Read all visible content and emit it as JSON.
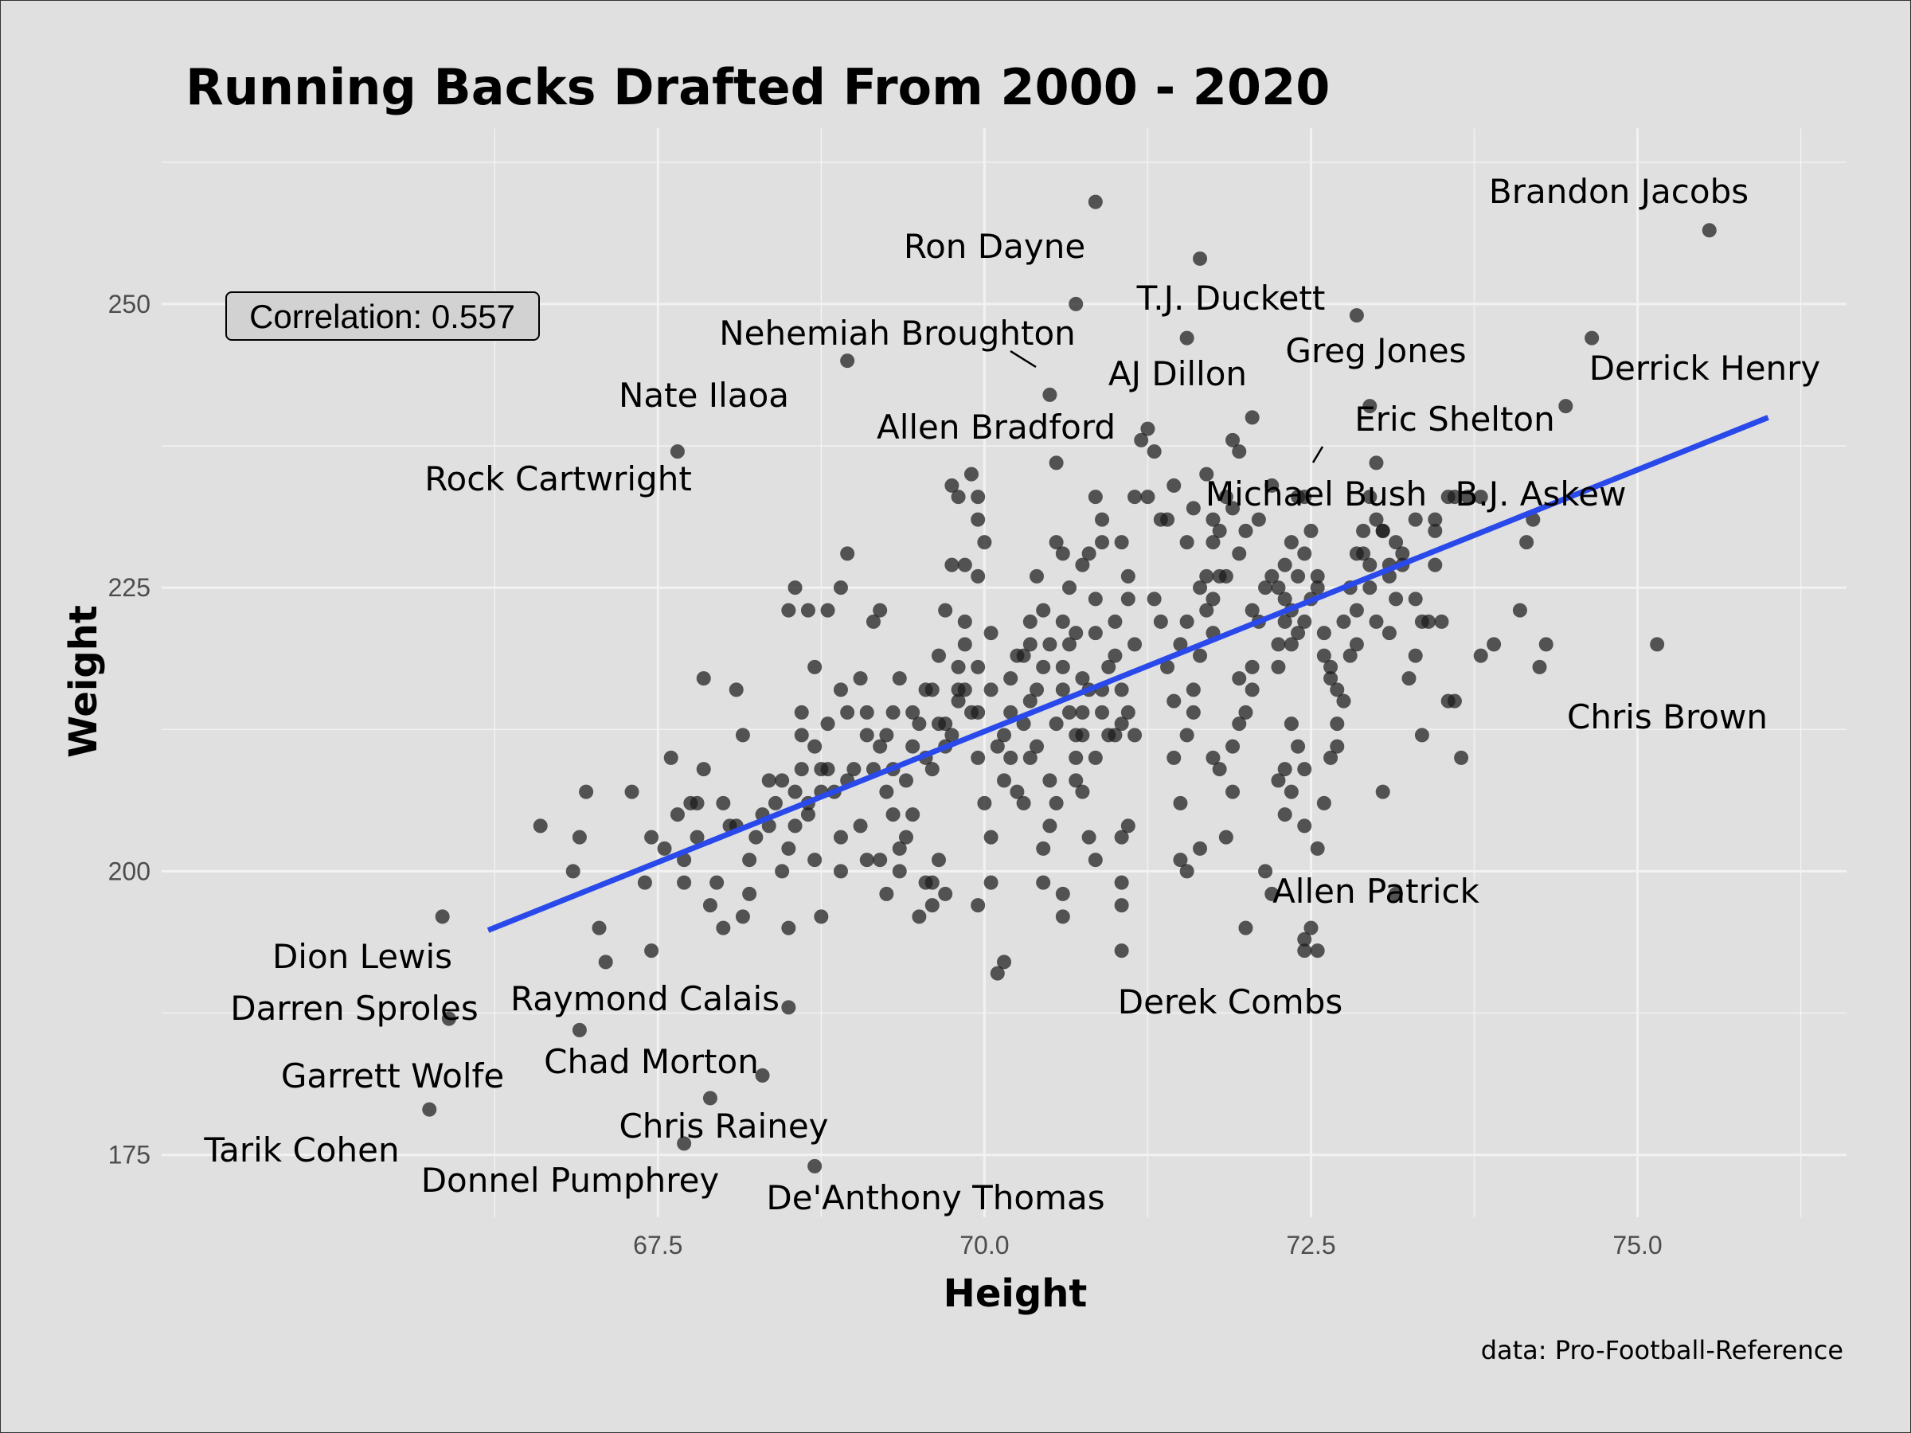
{
  "chart_data": {
    "type": "scatter",
    "title": "Running Backs Drafted From 2000 - 2020",
    "xlabel": "Height",
    "ylabel": "Weight",
    "caption": "data: Pro-Football-Reference",
    "annotation": "Correlation: 0.557",
    "xlim": [
      63.7,
      76.6
    ],
    "ylim": [
      169.5,
      265.5
    ],
    "x_ticks": [
      67.5,
      70.0,
      72.5,
      75.0
    ],
    "x_tick_labels": [
      "67.5",
      "70.0",
      "72.5",
      "75.0"
    ],
    "y_ticks": [
      175,
      200,
      225,
      250
    ],
    "y_tick_labels": [
      "175",
      "200",
      "225",
      "250"
    ],
    "grid": true,
    "colors": {
      "background": "#e0e0e0",
      "grid": "#f2f2f2",
      "points": "#1a1a1a",
      "trend": "#2a49ea"
    },
    "trend_line": {
      "x": [
        66.2,
        76.0
      ],
      "y": [
        194.8,
        240.0
      ]
    },
    "labeled_points": [
      {
        "name": "Brandon Jacobs",
        "x": 75.55,
        "y": 256.5
      },
      {
        "name": "Ron Dayne",
        "x": 70.85,
        "y": 259.0
      },
      {
        "name": "T.J. Duckett",
        "x": 71.65,
        "y": 254.0
      },
      {
        "name": "Nehemiah Broughton",
        "x": 70.7,
        "y": 250.0
      },
      {
        "name": "AJ Dillon",
        "x": 71.55,
        "y": 247.0
      },
      {
        "name": "Greg Jones",
        "x": 72.85,
        "y": 249.0
      },
      {
        "name": "Derrick Henry",
        "x": 74.65,
        "y": 247.0
      },
      {
        "name": "Nate Ilaoa",
        "x": 68.95,
        "y": 245.0
      },
      {
        "name": "Eric Shelton",
        "x": 72.95,
        "y": 241.0
      },
      {
        "name": "Allen Bradford",
        "x": 70.5,
        "y": 242.0
      },
      {
        "name": "Rock Cartwright",
        "x": 67.65,
        "y": 237.0
      },
      {
        "name": "Michael Bush",
        "x": 72.05,
        "y": 240.0
      },
      {
        "name": "B.J. Askew",
        "x": 74.45,
        "y": 241.0
      },
      {
        "name": "Chris Brown",
        "x": 75.15,
        "y": 220.0
      },
      {
        "name": "Allen Patrick",
        "x": 73.15,
        "y": 198.0
      },
      {
        "name": "Derek Combs",
        "x": 72.45,
        "y": 193.0
      },
      {
        "name": "Dion Lewis",
        "x": 65.85,
        "y": 196.0
      },
      {
        "name": "Darren Sproles",
        "x": 65.9,
        "y": 187.0
      },
      {
        "name": "Raymond Calais",
        "x": 68.5,
        "y": 188.0
      },
      {
        "name": "Garrett Wolfe",
        "x": 66.9,
        "y": 186.0
      },
      {
        "name": "Chad Morton",
        "x": 68.3,
        "y": 182.0
      },
      {
        "name": "Tarik Cohen",
        "x": 65.75,
        "y": 179.0
      },
      {
        "name": "Chris Rainey",
        "x": 67.9,
        "y": 180.0
      },
      {
        "name": "Donnel Pumphrey",
        "x": 67.7,
        "y": 176.0
      },
      {
        "name": "De'Anthony Thomas",
        "x": 68.7,
        "y": 174.0
      }
    ],
    "points": [
      [
        66.6,
        204
      ],
      [
        66.9,
        203
      ],
      [
        66.85,
        200
      ],
      [
        66.95,
        207
      ],
      [
        67.3,
        207
      ],
      [
        67.45,
        203
      ],
      [
        67.55,
        202
      ],
      [
        67.4,
        199
      ],
      [
        67.05,
        195
      ],
      [
        67.1,
        192
      ],
      [
        67.45,
        193
      ],
      [
        67.6,
        210
      ],
      [
        67.75,
        206
      ],
      [
        67.8,
        206
      ],
      [
        67.7,
        199
      ],
      [
        67.7,
        201
      ],
      [
        67.85,
        217
      ],
      [
        68.15,
        212
      ],
      [
        68.1,
        216
      ],
      [
        68.05,
        204
      ],
      [
        68.1,
        204
      ],
      [
        68.2,
        198
      ],
      [
        68.45,
        200
      ],
      [
        68.35,
        204
      ],
      [
        68.5,
        195
      ],
      [
        68.35,
        208
      ],
      [
        68.45,
        208
      ],
      [
        68.55,
        207
      ],
      [
        68.65,
        205
      ],
      [
        68.75,
        207
      ],
      [
        68.6,
        209
      ],
      [
        68.6,
        212
      ],
      [
        68.6,
        214
      ],
      [
        68.7,
        218
      ],
      [
        68.65,
        223
      ],
      [
        68.5,
        223
      ],
      [
        68.55,
        225
      ],
      [
        68.75,
        209
      ],
      [
        68.8,
        209
      ],
      [
        68.8,
        223
      ],
      [
        68.85,
        207
      ],
      [
        68.7,
        201
      ],
      [
        68.75,
        196
      ],
      [
        68.9,
        203
      ],
      [
        68.9,
        200
      ],
      [
        68.95,
        214
      ],
      [
        68.95,
        208
      ],
      [
        68.95,
        228
      ],
      [
        68.9,
        225
      ],
      [
        69.05,
        217
      ],
      [
        69.1,
        212
      ],
      [
        69.05,
        204
      ],
      [
        69.15,
        209
      ],
      [
        69.1,
        201
      ],
      [
        69.15,
        222
      ],
      [
        69.2,
        223
      ],
      [
        69.25,
        198
      ],
      [
        69.2,
        201
      ],
      [
        69.25,
        207
      ],
      [
        69.35,
        200
      ],
      [
        69.3,
        205
      ],
      [
        69.35,
        202
      ],
      [
        69.3,
        209
      ],
      [
        69.35,
        217
      ],
      [
        69.4,
        203
      ],
      [
        69.45,
        205
      ],
      [
        69.45,
        214
      ],
      [
        69.55,
        216
      ],
      [
        69.6,
        216
      ],
      [
        69.55,
        210
      ],
      [
        69.5,
        196
      ],
      [
        69.55,
        199
      ],
      [
        69.6,
        197
      ],
      [
        69.6,
        199
      ],
      [
        69.65,
        201
      ],
      [
        69.7,
        198
      ],
      [
        69.7,
        213
      ],
      [
        69.75,
        212
      ],
      [
        69.8,
        216
      ],
      [
        69.85,
        220
      ],
      [
        69.8,
        218
      ],
      [
        69.9,
        214
      ],
      [
        69.85,
        222
      ],
      [
        69.75,
        227
      ],
      [
        69.7,
        223
      ],
      [
        69.65,
        213
      ],
      [
        69.65,
        219
      ],
      [
        69.85,
        227
      ],
      [
        69.8,
        233
      ],
      [
        69.75,
        234
      ],
      [
        69.95,
        233
      ],
      [
        69.9,
        235
      ],
      [
        69.95,
        231
      ],
      [
        70.0,
        229
      ],
      [
        69.95,
        226
      ],
      [
        70.05,
        221
      ],
      [
        69.95,
        214
      ],
      [
        69.95,
        210
      ],
      [
        70.0,
        206
      ],
      [
        69.95,
        197
      ],
      [
        70.05,
        203
      ],
      [
        70.05,
        199
      ],
      [
        70.1,
        191
      ],
      [
        70.15,
        192
      ],
      [
        70.2,
        214
      ],
      [
        70.25,
        219
      ],
      [
        70.2,
        217
      ],
      [
        70.15,
        212
      ],
      [
        70.25,
        207
      ],
      [
        70.3,
        206
      ],
      [
        70.35,
        210
      ],
      [
        70.3,
        219
      ],
      [
        70.35,
        222
      ],
      [
        70.35,
        220
      ],
      [
        70.4,
        226
      ],
      [
        70.45,
        223
      ],
      [
        70.35,
        215
      ],
      [
        70.4,
        211
      ],
      [
        70.45,
        199
      ],
      [
        70.45,
        202
      ],
      [
        70.5,
        204
      ],
      [
        70.5,
        208
      ],
      [
        70.55,
        206
      ],
      [
        70.55,
        213
      ],
      [
        70.6,
        218
      ],
      [
        70.6,
        216
      ],
      [
        70.6,
        222
      ],
      [
        70.65,
        220
      ],
      [
        70.7,
        212
      ],
      [
        70.7,
        210
      ],
      [
        70.7,
        208
      ],
      [
        70.75,
        207
      ],
      [
        70.8,
        203
      ],
      [
        70.85,
        201
      ],
      [
        70.85,
        210
      ],
      [
        70.9,
        214
      ],
      [
        70.9,
        216
      ],
      [
        70.95,
        212
      ],
      [
        71.0,
        222
      ],
      [
        71.0,
        219
      ],
      [
        71.05,
        213
      ],
      [
        70.85,
        221
      ],
      [
        70.85,
        224
      ],
      [
        70.8,
        228
      ],
      [
        70.85,
        233
      ],
      [
        70.9,
        229
      ],
      [
        70.9,
        231
      ],
      [
        70.55,
        236
      ],
      [
        70.55,
        229
      ],
      [
        70.6,
        228
      ],
      [
        70.65,
        225
      ],
      [
        70.75,
        227
      ],
      [
        70.7,
        221
      ],
      [
        70.75,
        217
      ],
      [
        70.75,
        214
      ],
      [
        70.6,
        198
      ],
      [
        70.6,
        196
      ],
      [
        71.05,
        197
      ],
      [
        71.05,
        199
      ],
      [
        71.05,
        193
      ],
      [
        71.05,
        203
      ],
      [
        71.1,
        204
      ],
      [
        71.15,
        212
      ],
      [
        71.15,
        220
      ],
      [
        71.1,
        224
      ],
      [
        71.1,
        226
      ],
      [
        71.05,
        229
      ],
      [
        71.15,
        233
      ],
      [
        71.25,
        233
      ],
      [
        71.35,
        231
      ],
      [
        71.2,
        238
      ],
      [
        71.25,
        239
      ],
      [
        71.3,
        237
      ],
      [
        71.3,
        224
      ],
      [
        71.35,
        222
      ],
      [
        71.4,
        218
      ],
      [
        71.45,
        215
      ],
      [
        71.45,
        210
      ],
      [
        71.5,
        206
      ],
      [
        71.5,
        201
      ],
      [
        71.55,
        200
      ],
      [
        71.55,
        212
      ],
      [
        71.6,
        216
      ],
      [
        71.6,
        214
      ],
      [
        71.65,
        219
      ],
      [
        71.7,
        223
      ],
      [
        71.75,
        221
      ],
      [
        71.7,
        226
      ],
      [
        71.75,
        229
      ],
      [
        71.8,
        230
      ],
      [
        71.75,
        231
      ],
      [
        71.85,
        233
      ],
      [
        71.95,
        237
      ],
      [
        71.9,
        238
      ],
      [
        71.75,
        210
      ],
      [
        71.8,
        209
      ],
      [
        71.85,
        203
      ],
      [
        71.9,
        207
      ],
      [
        71.9,
        211
      ],
      [
        71.95,
        213
      ],
      [
        72.0,
        214
      ],
      [
        71.95,
        217
      ],
      [
        72.05,
        216
      ],
      [
        72.1,
        222
      ],
      [
        72.05,
        218
      ],
      [
        71.65,
        202
      ],
      [
        72.15,
        200
      ],
      [
        72.2,
        198
      ],
      [
        72.0,
        195
      ],
      [
        72.25,
        218
      ],
      [
        72.25,
        220
      ],
      [
        72.3,
        222
      ],
      [
        72.25,
        225
      ],
      [
        72.3,
        227
      ],
      [
        72.35,
        223
      ],
      [
        72.4,
        221
      ],
      [
        72.4,
        226
      ],
      [
        72.35,
        229
      ],
      [
        72.4,
        233
      ],
      [
        72.45,
        233
      ],
      [
        72.45,
        228
      ],
      [
        72.5,
        230
      ],
      [
        72.5,
        224
      ],
      [
        72.55,
        225
      ],
      [
        72.6,
        221
      ],
      [
        72.6,
        219
      ],
      [
        72.65,
        217
      ],
      [
        72.7,
        216
      ],
      [
        72.75,
        215
      ],
      [
        72.8,
        219
      ],
      [
        72.85,
        223
      ],
      [
        72.85,
        228
      ],
      [
        72.9,
        228
      ],
      [
        72.9,
        230
      ],
      [
        72.95,
        233
      ],
      [
        73.0,
        236
      ],
      [
        73.0,
        231
      ],
      [
        72.95,
        227
      ],
      [
        73.05,
        230
      ],
      [
        73.1,
        227
      ],
      [
        73.1,
        221
      ],
      [
        73.1,
        226
      ],
      [
        73.15,
        229
      ],
      [
        73.2,
        228
      ],
      [
        73.25,
        217
      ],
      [
        73.3,
        224
      ],
      [
        73.3,
        219
      ],
      [
        73.35,
        222
      ],
      [
        73.4,
        222
      ],
      [
        73.45,
        227
      ],
      [
        73.45,
        231
      ],
      [
        73.45,
        230
      ],
      [
        73.5,
        222
      ],
      [
        73.55,
        215
      ],
      [
        73.55,
        233
      ],
      [
        73.6,
        233
      ],
      [
        73.65,
        210
      ],
      [
        73.8,
        233
      ],
      [
        73.7,
        233
      ],
      [
        72.7,
        211
      ],
      [
        72.7,
        213
      ],
      [
        72.6,
        206
      ],
      [
        72.65,
        210
      ],
      [
        72.55,
        202
      ],
      [
        72.45,
        204
      ],
      [
        72.45,
        209
      ],
      [
        72.4,
        211
      ],
      [
        72.35,
        213
      ],
      [
        72.35,
        207
      ],
      [
        72.3,
        209
      ],
      [
        72.25,
        208
      ],
      [
        72.3,
        205
      ],
      [
        72.45,
        194
      ],
      [
        72.5,
        195
      ],
      [
        72.55,
        193
      ],
      [
        73.05,
        207
      ],
      [
        73.35,
        212
      ],
      [
        73.8,
        219
      ],
      [
        73.9,
        220
      ],
      [
        74.1,
        223
      ],
      [
        74.15,
        229
      ],
      [
        74.2,
        231
      ],
      [
        74.25,
        218
      ],
      [
        74.3,
        220
      ],
      [
        73.6,
        215
      ],
      [
        73.05,
        230
      ],
      [
        73.3,
        231
      ],
      [
        73.2,
        227
      ],
      [
        71.1,
        214
      ],
      [
        71.0,
        212
      ],
      [
        70.95,
        218
      ],
      [
        71.05,
        216
      ],
      [
        70.8,
        216
      ],
      [
        70.75,
        212
      ],
      [
        70.65,
        214
      ],
      [
        70.5,
        220
      ],
      [
        70.45,
        218
      ],
      [
        70.4,
        216
      ],
      [
        70.3,
        213
      ],
      [
        70.2,
        210
      ],
      [
        70.15,
        208
      ],
      [
        70.1,
        211
      ],
      [
        70.05,
        216
      ],
      [
        69.95,
        218
      ],
      [
        69.85,
        216
      ],
      [
        69.8,
        215
      ],
      [
        69.7,
        211
      ],
      [
        69.6,
        209
      ],
      [
        69.5,
        213
      ],
      [
        69.45,
        211
      ],
      [
        69.4,
        208
      ],
      [
        69.3,
        214
      ],
      [
        69.25,
        212
      ],
      [
        69.2,
        211
      ],
      [
        69.1,
        214
      ],
      [
        69.0,
        209
      ],
      [
        68.9,
        216
      ],
      [
        68.8,
        213
      ],
      [
        68.7,
        211
      ],
      [
        68.65,
        206
      ],
      [
        68.55,
        204
      ],
      [
        68.5,
        202
      ],
      [
        68.4,
        206
      ],
      [
        68.3,
        205
      ],
      [
        68.25,
        203
      ],
      [
        68.2,
        201
      ],
      [
        68.15,
        196
      ],
      [
        68.0,
        195
      ],
      [
        67.95,
        199
      ],
      [
        67.9,
        197
      ],
      [
        67.85,
        209
      ],
      [
        67.8,
        203
      ],
      [
        67.65,
        205
      ],
      [
        68.0,
        206
      ],
      [
        71.5,
        220
      ],
      [
        71.55,
        222
      ],
      [
        71.65,
        225
      ],
      [
        71.75,
        224
      ],
      [
        71.85,
        226
      ],
      [
        71.95,
        228
      ],
      [
        72.05,
        223
      ],
      [
        72.15,
        225
      ],
      [
        72.2,
        226
      ],
      [
        72.3,
        224
      ],
      [
        72.35,
        220
      ],
      [
        72.45,
        222
      ],
      [
        72.55,
        226
      ],
      [
        72.65,
        218
      ],
      [
        72.75,
        222
      ],
      [
        72.8,
        225
      ],
      [
        72.85,
        220
      ],
      [
        72.95,
        225
      ],
      [
        73.0,
        222
      ],
      [
        73.15,
        224
      ],
      [
        71.4,
        231
      ],
      [
        71.45,
        234
      ],
      [
        71.55,
        229
      ],
      [
        71.6,
        232
      ],
      [
        71.7,
        235
      ],
      [
        71.8,
        226
      ],
      [
        71.9,
        232
      ],
      [
        72.0,
        230
      ],
      [
        72.1,
        231
      ],
      [
        72.2,
        234
      ]
    ]
  }
}
